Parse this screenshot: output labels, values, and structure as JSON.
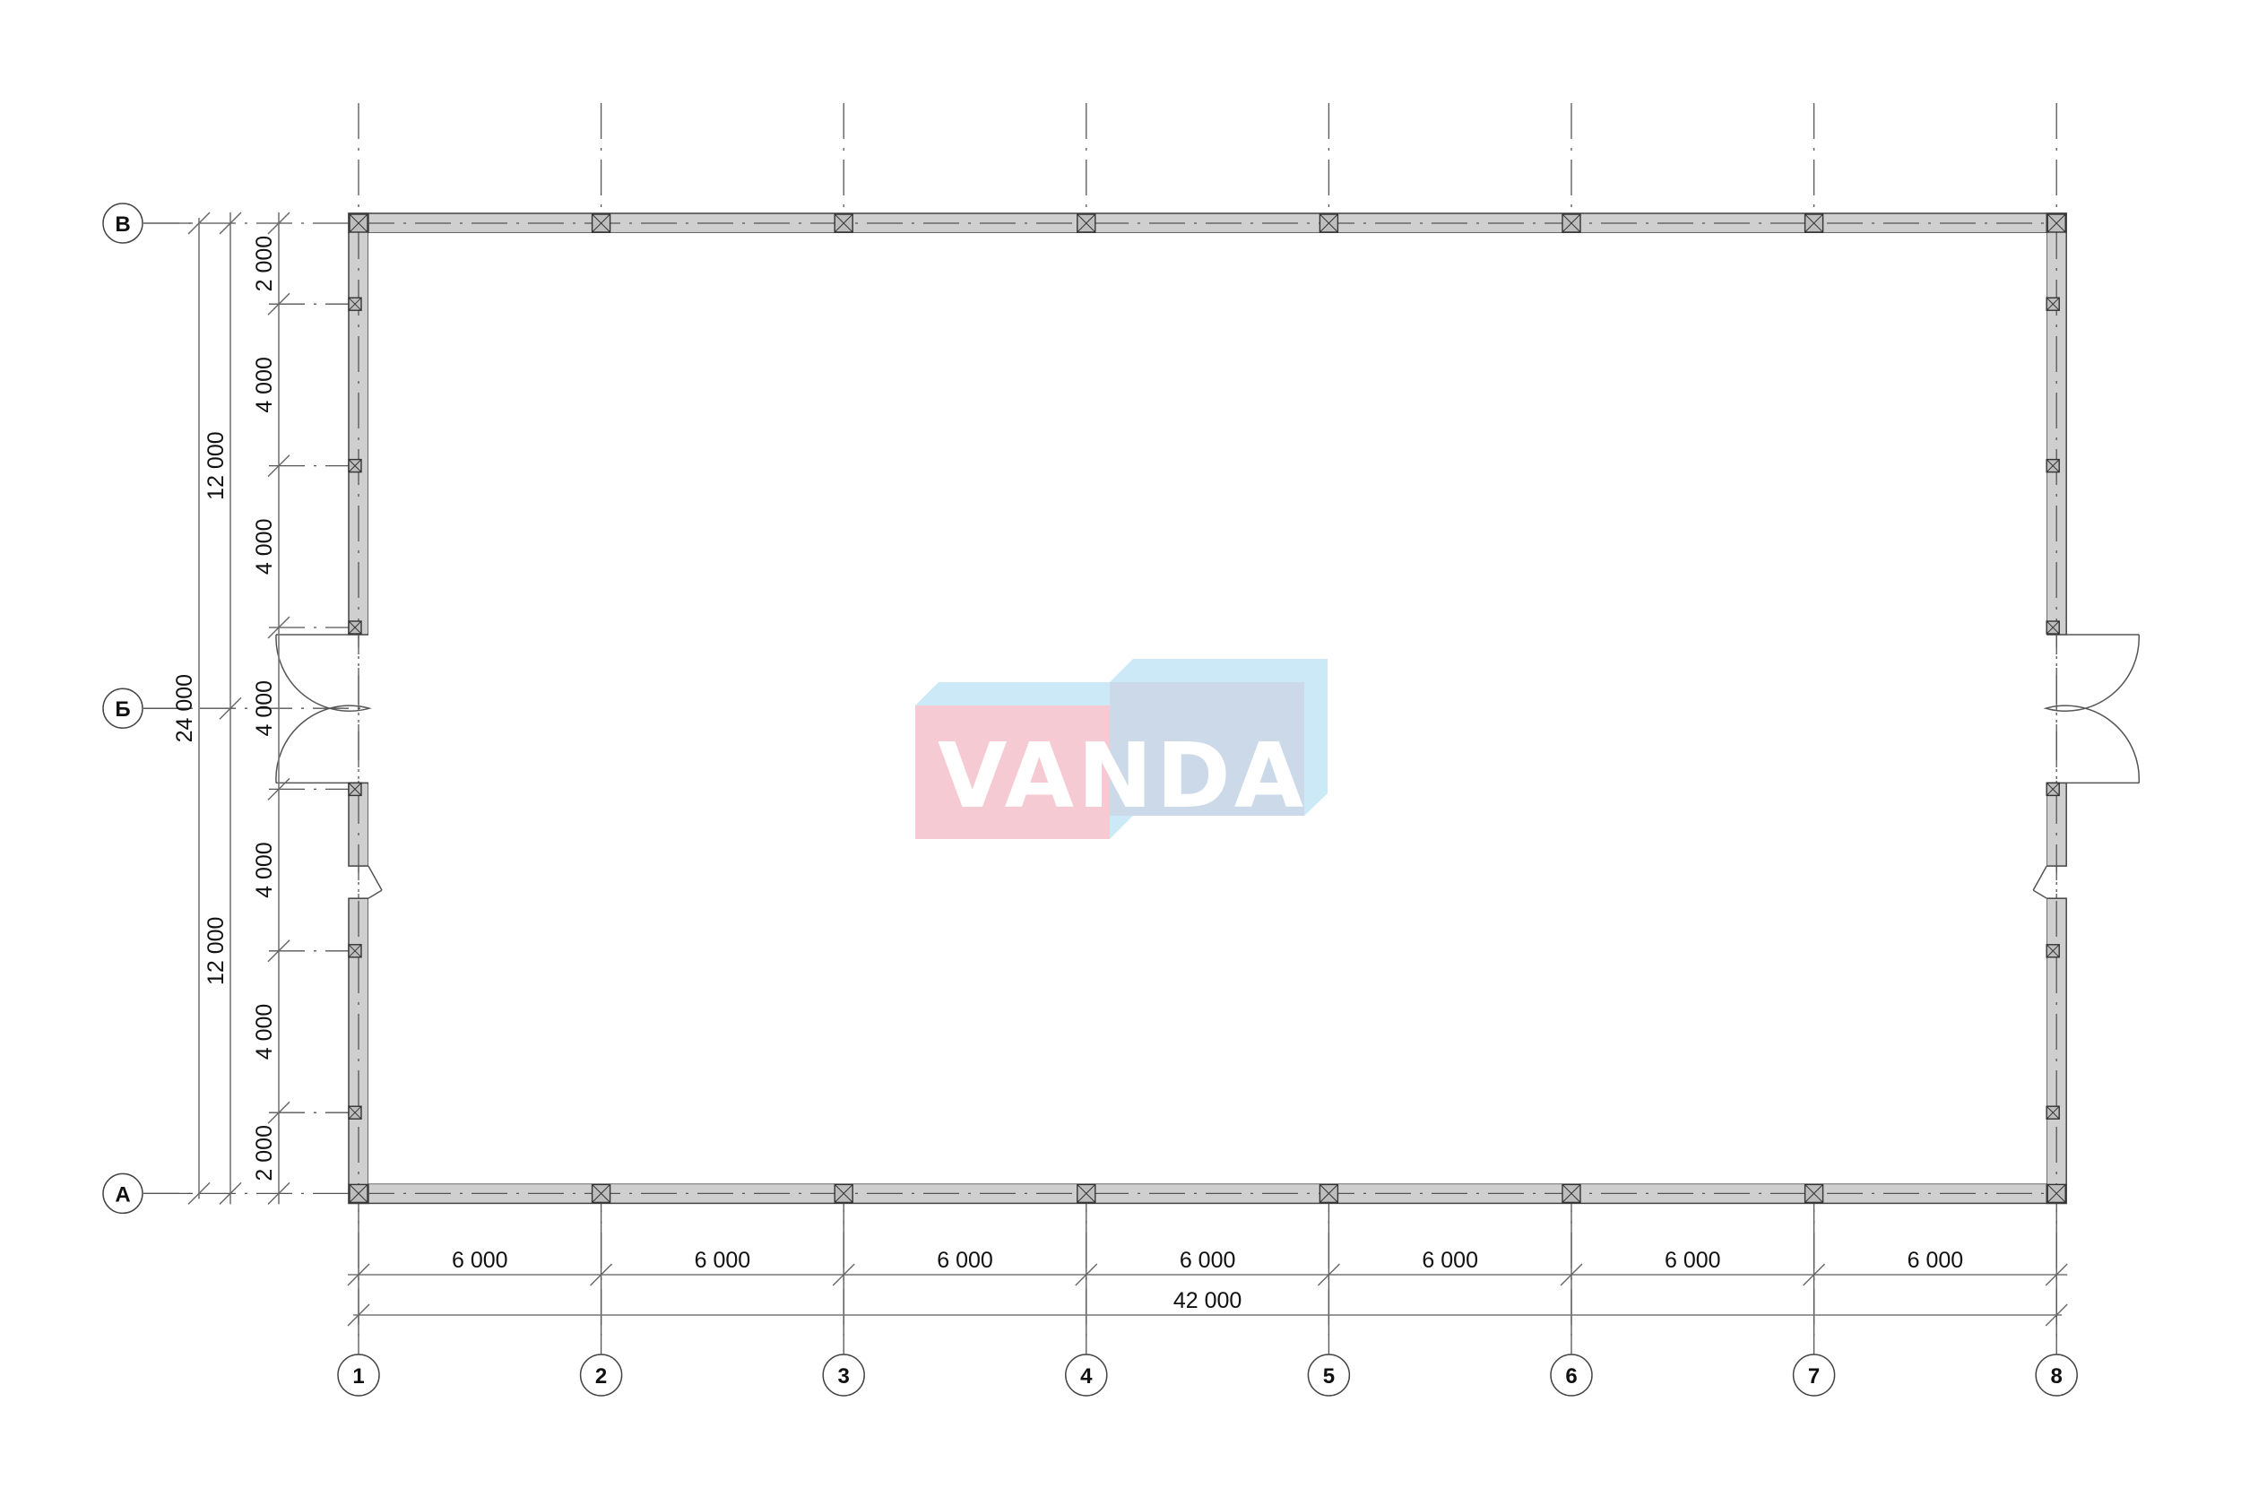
{
  "plan": {
    "column_axes": [
      "1",
      "2",
      "3",
      "4",
      "5",
      "6",
      "7",
      "8"
    ],
    "row_axes": [
      "В",
      "Б",
      "А"
    ],
    "bottom_chain_dimensions": [
      "6 000",
      "6 000",
      "6 000",
      "6 000",
      "6 000",
      "6 000",
      "6 000"
    ],
    "bottom_total_dimension": "42 000",
    "left_chain_dimensions": [
      "2 000",
      "4 000",
      "4 000",
      "4 000",
      "4 000",
      "4 000",
      "2 000"
    ],
    "left_half_dimensions": [
      "12 000",
      "12 000"
    ],
    "left_total_dimension": "24 000"
  },
  "watermark": {
    "text": "VANDA",
    "colors": {
      "pink": "#f6c8d0",
      "light_blue": "#c9e8f6",
      "blue": "#c9d8e8"
    }
  }
}
